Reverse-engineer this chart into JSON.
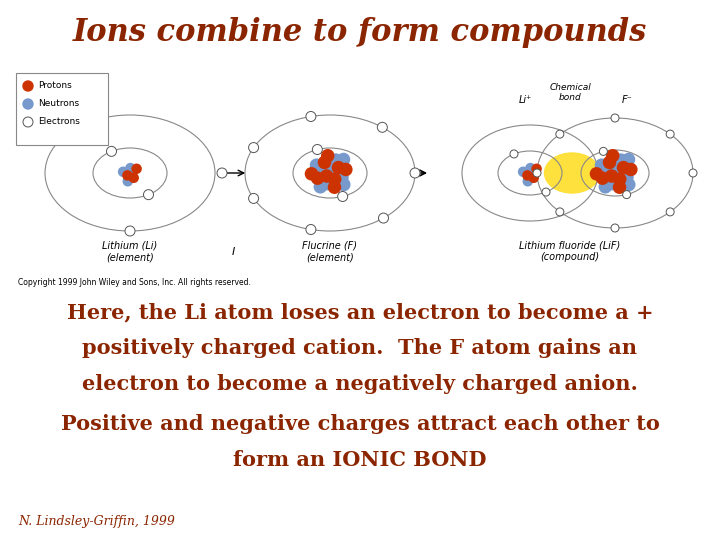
{
  "title": "Ions combine to form compounds",
  "title_color": "#8B2500",
  "title_fontsize": 22,
  "bg_color": "#FFFFFF",
  "text_color": "#8B2500",
  "text_fontsize": 15,
  "footer": "N. Lindsley-Griffin, 1999",
  "footer_color": "#8B2500",
  "footer_fontsize": 9,
  "line1": "Here, the Li atom loses an electron to become a +",
  "line2a": "positively charged ",
  "line2b": "cation",
  "line2c": ".  The F atom gains an",
  "line3a": "electron to become a negatively charged ",
  "line3b": "anion",
  "line3c": ".",
  "line4": "Positive and negative charges attract each other to",
  "line5": "form an IONIC BOND",
  "copyright": "Copyright 1999 John Wiley and Sons, Inc. All rights reserved."
}
